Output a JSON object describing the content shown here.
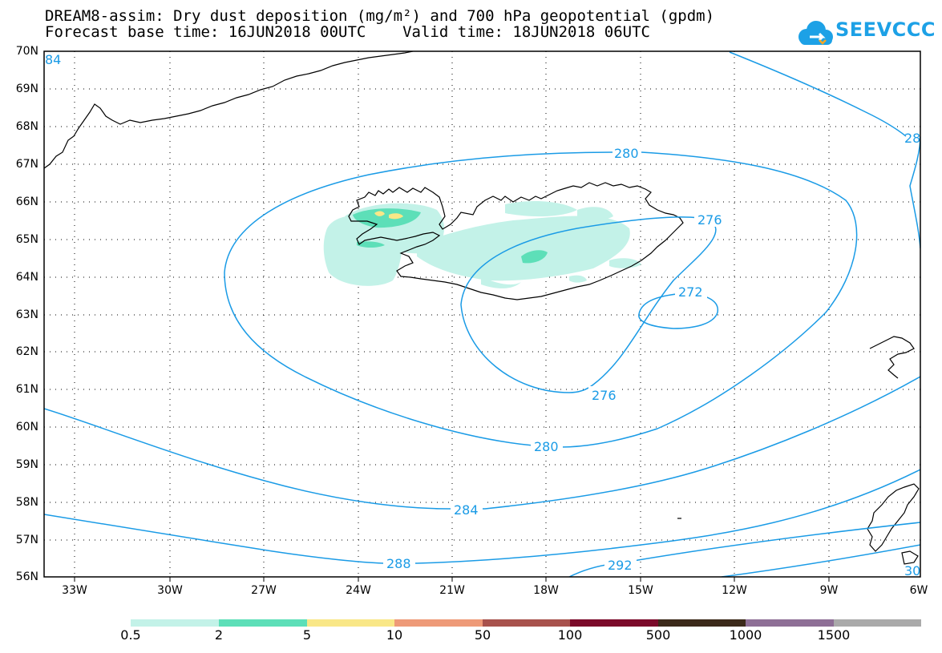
{
  "header": {
    "title_line1": "DREAM8-assim: Dry dust deposition (mg/m²) and 700 hPa geopotential (gpdm)",
    "title_line2": "Forecast base time: 16JUN2018 00UTC    Valid time: 18JUN2018 06UTC"
  },
  "logo": {
    "text": "SEEVCCC",
    "icon": "cloud-logo-icon",
    "color": "#1da1e6"
  },
  "map": {
    "lat_labels": [
      "70N",
      "69N",
      "68N",
      "67N",
      "66N",
      "65N",
      "64N",
      "63N",
      "62N",
      "61N",
      "60N",
      "59N",
      "58N",
      "57N",
      "56N"
    ],
    "lon_labels": [
      "33W",
      "30W",
      "27W",
      "24W",
      "21W",
      "18W",
      "15W",
      "12W",
      "9W",
      "6W"
    ],
    "contour_color": "#1a9be6",
    "contour_labels": [
      {
        "text": "280",
        "level": 280
      },
      {
        "text": "276",
        "level": 276
      },
      {
        "text": "272",
        "level": 272
      },
      {
        "text": "276",
        "level": 276
      },
      {
        "text": "280",
        "level": 280
      },
      {
        "text": "284",
        "level": 284
      },
      {
        "text": "288",
        "level": 288
      },
      {
        "text": "292",
        "level": 292
      },
      {
        "text": "28",
        "level": 28
      },
      {
        "text": "84",
        "level": 84
      },
      {
        "text": "30",
        "level": 30
      }
    ]
  },
  "colorbar": {
    "labels": [
      "0.5",
      "2",
      "5",
      "10",
      "50",
      "100",
      "500",
      "1000",
      "1500"
    ],
    "colors": [
      "#c3f2e8",
      "#5ddfb8",
      "#f9e787",
      "#ee9a78",
      "#a8524d",
      "#7b0a2a",
      "#3c2a1a",
      "#8e6f96",
      "#aaaaaa"
    ]
  }
}
